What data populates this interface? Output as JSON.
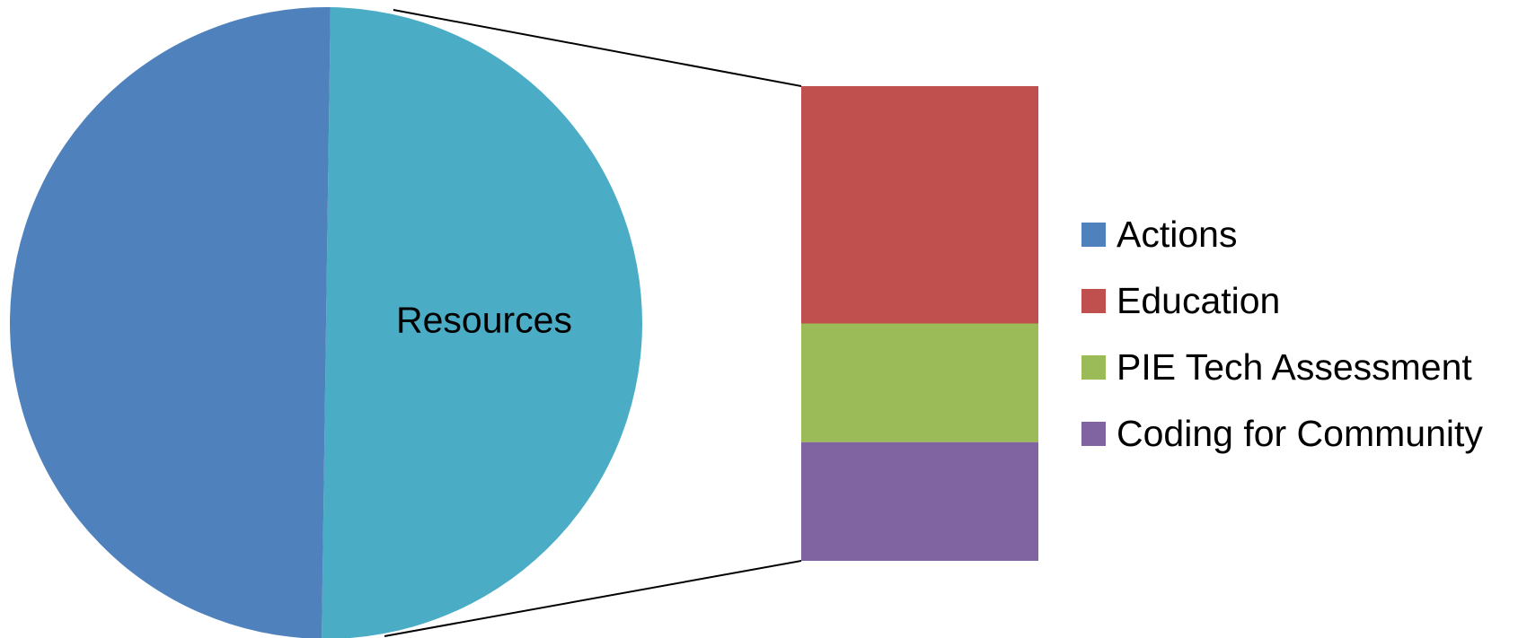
{
  "chart_data": {
    "type": "pie",
    "subtype": "bar-of-pie",
    "title": "",
    "pie_slices": [
      {
        "name": "Actions",
        "value": 50,
        "color": "#4F81BD"
      },
      {
        "name": "Resources",
        "value": 50,
        "color": "#4BACC6",
        "label": "Resources"
      }
    ],
    "breakout_of": "Resources",
    "bar_segments": [
      {
        "name": "Education",
        "value": 50,
        "color": "#C0504D"
      },
      {
        "name": "PIE Tech Assessment",
        "value": 25,
        "color": "#9BBB59"
      },
      {
        "name": "Coding for Community",
        "value": 25,
        "color": "#8064A2"
      }
    ],
    "legend": {
      "position": "right",
      "entries": [
        {
          "label": "Actions",
          "color": "#4F81BD"
        },
        {
          "label": "Education",
          "color": "#C0504D"
        },
        {
          "label": "PIE Tech Assessment",
          "color": "#9BBB59"
        },
        {
          "label": "Coding for Community",
          "color": "#8064A2"
        }
      ]
    }
  }
}
